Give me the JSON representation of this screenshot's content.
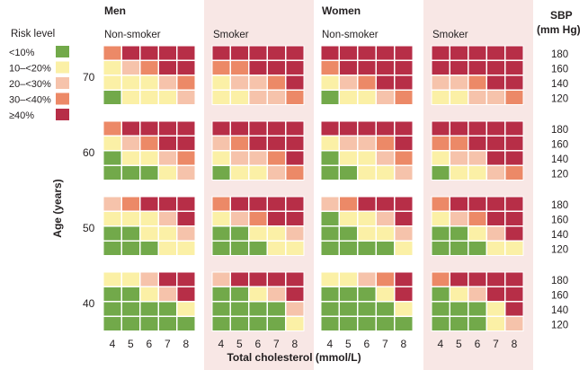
{
  "legend": {
    "title": "Risk level",
    "items": [
      {
        "label": "<10%",
        "color": "#72a94a"
      },
      {
        "label": "10–<20%",
        "color": "#fbf0a6"
      },
      {
        "label": "20–<30%",
        "color": "#f6c3ab"
      },
      {
        "label": "30–<40%",
        "color": "#ec8967"
      },
      {
        "label": "≥40%",
        "color": "#b72e47"
      }
    ]
  },
  "panel_background": "#f8e7e5",
  "chart_data": {
    "type": "heatmap",
    "value_legend": "risk level category index: 0 = <10%, 1 = 10–<20%, 2 = 20–<30%, 3 = 30–<40%, 4 = ≥40%",
    "sex_labels": [
      "Men",
      "Women"
    ],
    "group_labels": [
      "Non-smoker",
      "Smoker",
      "Non-smoker",
      "Smoker"
    ],
    "x_values": [
      "4",
      "5",
      "6",
      "7",
      "8"
    ],
    "xlabel": "Total cholesterol (mmol/L)",
    "age_values": [
      "70",
      "60",
      "50",
      "40"
    ],
    "ylabel": "Age (years)",
    "sbp_title": [
      "SBP",
      "(mm Hg)"
    ],
    "sbp_values": [
      "180",
      "160",
      "140",
      "120"
    ],
    "cells": [
      [
        [
          [
            3,
            4,
            4,
            4,
            4
          ],
          [
            1,
            2,
            3,
            4,
            4
          ],
          [
            1,
            1,
            1,
            2,
            3
          ],
          [
            0,
            1,
            1,
            1,
            2
          ]
        ],
        [
          [
            4,
            4,
            4,
            4,
            4
          ],
          [
            3,
            3,
            4,
            4,
            4
          ],
          [
            1,
            2,
            2,
            3,
            4
          ],
          [
            1,
            1,
            2,
            2,
            3
          ]
        ],
        [
          [
            4,
            4,
            4,
            4,
            4
          ],
          [
            3,
            4,
            4,
            4,
            4
          ],
          [
            1,
            2,
            3,
            4,
            4
          ],
          [
            0,
            1,
            1,
            2,
            3
          ]
        ],
        [
          [
            4,
            4,
            4,
            4,
            4
          ],
          [
            4,
            4,
            4,
            4,
            4
          ],
          [
            2,
            2,
            3,
            4,
            4
          ],
          [
            1,
            1,
            2,
            2,
            3
          ]
        ]
      ],
      [
        [
          [
            3,
            4,
            4,
            4,
            4
          ],
          [
            1,
            2,
            3,
            4,
            4
          ],
          [
            0,
            1,
            1,
            2,
            3
          ],
          [
            0,
            0,
            0,
            1,
            2
          ]
        ],
        [
          [
            4,
            4,
            4,
            4,
            4
          ],
          [
            2,
            3,
            4,
            4,
            4
          ],
          [
            1,
            2,
            2,
            3,
            4
          ],
          [
            0,
            1,
            1,
            2,
            3
          ]
        ],
        [
          [
            4,
            4,
            4,
            4,
            4
          ],
          [
            1,
            2,
            2,
            3,
            4
          ],
          [
            0,
            1,
            1,
            2,
            3
          ],
          [
            0,
            0,
            1,
            1,
            2
          ]
        ],
        [
          [
            4,
            4,
            4,
            4,
            4
          ],
          [
            3,
            3,
            4,
            4,
            4
          ],
          [
            1,
            2,
            2,
            4,
            4
          ],
          [
            0,
            1,
            1,
            2,
            3
          ]
        ]
      ],
      [
        [
          [
            2,
            3,
            4,
            4,
            4
          ],
          [
            1,
            1,
            1,
            2,
            4
          ],
          [
            0,
            0,
            1,
            1,
            2
          ],
          [
            0,
            0,
            0,
            1,
            1
          ]
        ],
        [
          [
            3,
            4,
            4,
            4,
            4
          ],
          [
            1,
            2,
            3,
            4,
            4
          ],
          [
            0,
            0,
            1,
            1,
            2
          ],
          [
            0,
            0,
            0,
            1,
            1
          ]
        ],
        [
          [
            2,
            3,
            4,
            4,
            4
          ],
          [
            0,
            1,
            1,
            2,
            4
          ],
          [
            0,
            0,
            1,
            1,
            2
          ],
          [
            0,
            0,
            0,
            0,
            1
          ]
        ],
        [
          [
            3,
            4,
            4,
            4,
            4
          ],
          [
            1,
            2,
            3,
            4,
            4
          ],
          [
            0,
            0,
            1,
            2,
            4
          ],
          [
            0,
            0,
            0,
            1,
            1
          ]
        ]
      ],
      [
        [
          [
            1,
            1,
            2,
            4,
            4
          ],
          [
            0,
            0,
            1,
            2,
            4
          ],
          [
            0,
            0,
            0,
            0,
            1
          ],
          [
            0,
            0,
            0,
            0,
            0
          ]
        ],
        [
          [
            2,
            4,
            4,
            4,
            4
          ],
          [
            0,
            0,
            1,
            2,
            4
          ],
          [
            0,
            0,
            0,
            0,
            2
          ],
          [
            0,
            0,
            0,
            0,
            1
          ]
        ],
        [
          [
            1,
            1,
            2,
            3,
            4
          ],
          [
            0,
            0,
            0,
            1,
            4
          ],
          [
            0,
            0,
            0,
            0,
            1
          ],
          [
            0,
            0,
            0,
            0,
            0
          ]
        ],
        [
          [
            3,
            4,
            4,
            4,
            4
          ],
          [
            0,
            1,
            2,
            4,
            4
          ],
          [
            0,
            0,
            0,
            1,
            4
          ],
          [
            0,
            0,
            0,
            1,
            2
          ]
        ]
      ]
    ]
  }
}
